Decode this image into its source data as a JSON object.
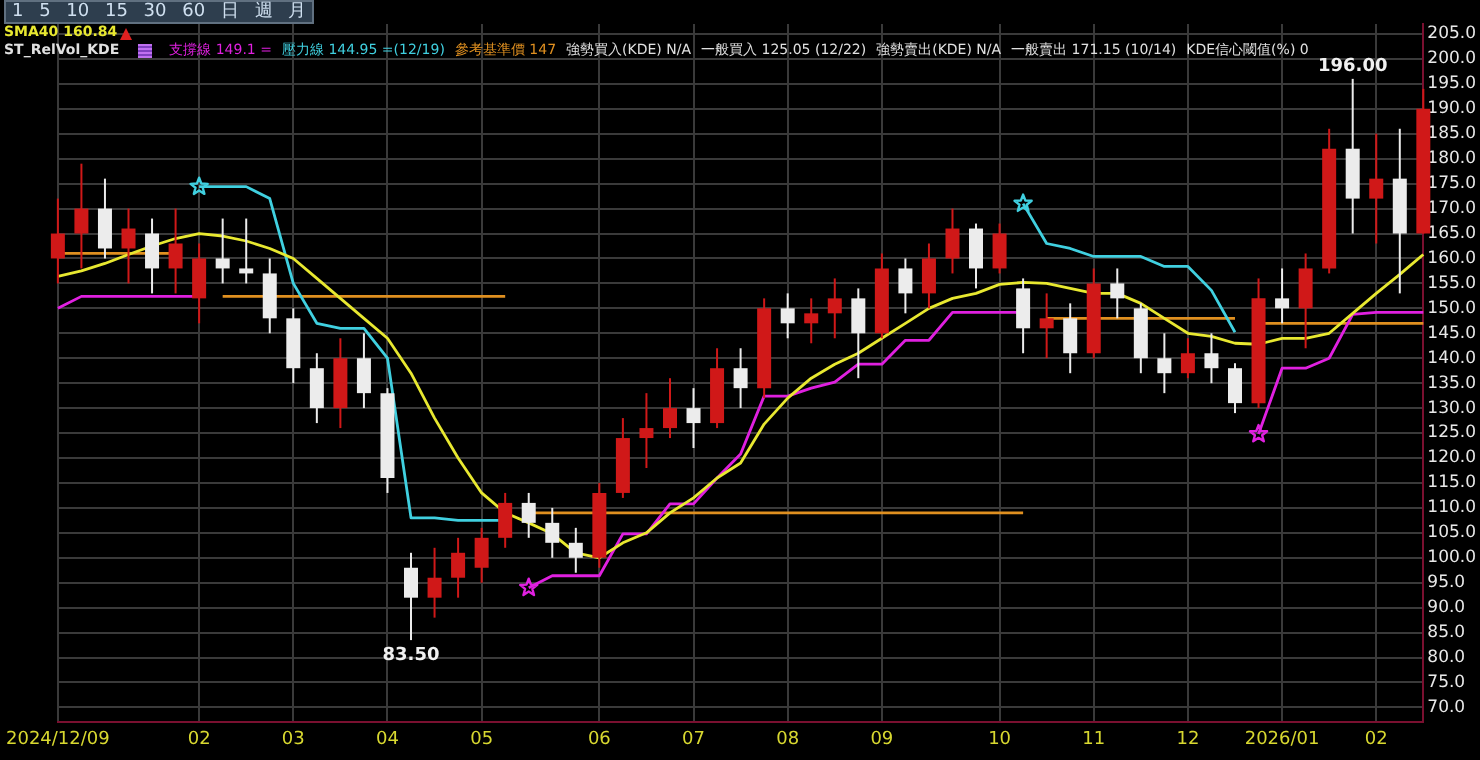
{
  "chart_data": {
    "type": "candlestick",
    "legend": "top left",
    "legend_title": "ST_RelVol_KDE",
    "grid": true,
    "categories": [
      "2024/12/09",
      null,
      null,
      null,
      null,
      null,
      "02",
      null,
      null,
      null,
      "03",
      null,
      null,
      null,
      "04",
      null,
      null,
      null,
      "05",
      null,
      null,
      null,
      null,
      "06",
      null,
      null,
      null,
      "07",
      null,
      null,
      null,
      "08",
      null,
      null,
      null,
      "09",
      null,
      null,
      null,
      null,
      "10",
      null,
      null,
      null,
      "11",
      null,
      null,
      null,
      "12",
      null,
      null,
      null,
      "2026/01",
      null,
      null,
      null,
      "02",
      null,
      null
    ],
    "ohlc": [
      [
        160,
        172,
        155,
        165
      ],
      [
        165,
        179,
        158,
        170
      ],
      [
        170,
        176,
        160,
        162
      ],
      [
        162,
        170,
        155,
        166
      ],
      [
        165,
        168,
        153,
        158
      ],
      [
        158,
        170,
        153,
        163
      ],
      [
        152,
        163,
        147,
        160
      ],
      [
        160,
        168,
        155,
        158
      ],
      [
        158,
        168,
        155,
        157
      ],
      [
        157,
        160,
        145,
        148
      ],
      [
        148,
        150,
        135,
        138
      ],
      [
        138,
        141,
        127,
        130
      ],
      [
        130,
        144,
        126,
        140
      ],
      [
        140,
        145,
        130,
        133
      ],
      [
        133,
        134,
        113,
        116
      ],
      [
        98,
        101,
        83.5,
        92
      ],
      [
        92,
        102,
        88,
        96
      ],
      [
        96,
        104,
        92,
        101
      ],
      [
        98,
        106,
        95,
        104
      ],
      [
        104,
        113,
        102,
        111
      ],
      [
        111,
        113,
        104,
        107
      ],
      [
        107,
        110,
        100,
        103
      ],
      [
        103,
        106,
        97,
        100
      ],
      [
        100,
        115,
        98,
        113
      ],
      [
        113,
        128,
        112,
        124
      ],
      [
        124,
        133,
        118,
        126
      ],
      [
        126,
        136,
        124,
        130
      ],
      [
        130,
        134,
        122,
        127
      ],
      [
        127,
        142,
        126,
        138
      ],
      [
        138,
        142,
        130,
        134
      ],
      [
        134,
        152,
        132,
        150
      ],
      [
        150,
        153,
        144,
        147
      ],
      [
        147,
        152,
        143,
        149
      ],
      [
        149,
        156,
        144,
        152
      ],
      [
        152,
        154,
        136,
        145
      ],
      [
        145,
        161,
        144,
        158
      ],
      [
        158,
        160,
        149,
        153
      ],
      [
        153,
        163,
        150,
        160
      ],
      [
        160,
        170,
        157,
        166
      ],
      [
        166,
        167,
        154,
        158
      ],
      [
        158,
        167,
        157,
        165
      ],
      [
        154,
        156,
        141,
        146
      ],
      [
        146,
        153,
        140,
        148
      ],
      [
        148,
        151,
        137,
        141
      ],
      [
        141,
        158,
        140,
        155
      ],
      [
        155,
        158,
        148,
        152
      ],
      [
        150,
        151,
        137,
        140
      ],
      [
        140,
        145,
        133,
        137
      ],
      [
        137,
        144,
        136,
        141
      ],
      [
        141,
        145,
        135,
        138
      ],
      [
        138,
        139,
        129,
        131
      ],
      [
        131,
        156,
        130,
        152
      ],
      [
        152,
        158,
        147,
        150
      ],
      [
        150,
        161,
        142,
        158
      ],
      [
        158,
        186,
        157,
        182
      ],
      [
        182,
        196,
        165,
        172
      ],
      [
        172,
        185,
        163,
        176
      ],
      [
        176,
        186,
        153,
        165
      ],
      [
        165,
        194,
        165,
        190
      ]
    ],
    "ylim": [
      67,
      207
    ],
    "yticks": [
      {
        "value": 70,
        "label": "70.0"
      },
      {
        "value": 75,
        "label": "75.0"
      },
      {
        "value": 80,
        "label": "80.0"
      },
      {
        "value": 85,
        "label": "85.0"
      },
      {
        "value": 90,
        "label": "90.0"
      },
      {
        "value": 95,
        "label": "95.0"
      },
      {
        "value": 100,
        "label": "100.0"
      },
      {
        "value": 105,
        "label": "105.0"
      },
      {
        "value": 110,
        "label": "110.0"
      },
      {
        "value": 115,
        "label": "115.0"
      },
      {
        "value": 120,
        "label": "120.0"
      },
      {
        "value": 125,
        "label": "125.0"
      },
      {
        "value": 130,
        "label": "130.0"
      },
      {
        "value": 135,
        "label": "135.0"
      },
      {
        "value": 140,
        "label": "140.0"
      },
      {
        "value": 145,
        "label": "145.0"
      },
      {
        "value": 150,
        "label": "150.0"
      },
      {
        "value": 155,
        "label": "155.0"
      },
      {
        "value": 160,
        "label": "160.0"
      },
      {
        "value": 165,
        "label": "165.0"
      },
      {
        "value": 170,
        "label": "170.0"
      },
      {
        "value": 175,
        "label": "175.0"
      },
      {
        "value": 180,
        "label": "180.0"
      },
      {
        "value": 185,
        "label": "185.0"
      },
      {
        "value": 190,
        "label": "190.0"
      },
      {
        "value": 195,
        "label": "195.0"
      },
      {
        "value": 200,
        "label": "200.0"
      },
      {
        "value": 205,
        "label": "205.0"
      }
    ],
    "series": [
      {
        "name": "SMA40 160.84",
        "type": "line",
        "marker": "none",
        "color": "#e8e830",
        "values": [
          156.4,
          157.5,
          159,
          160.8,
          162.5,
          164,
          165,
          164.5,
          163.5,
          162,
          160,
          156,
          152,
          148,
          144,
          137,
          128,
          120,
          113,
          109,
          107,
          104.8,
          101,
          100,
          103,
          105,
          109,
          112,
          116,
          119,
          126.8,
          132,
          136,
          138.8,
          141,
          144,
          147,
          150,
          152,
          153,
          154.8,
          155.2,
          155,
          154,
          153,
          153,
          151,
          148,
          145,
          144.4,
          143,
          142.8,
          144,
          144,
          145,
          149,
          153,
          156.8,
          160.8
        ]
      },
      {
        "name": "支撐線 149.1 =",
        "type": "line",
        "marker": "none",
        "color": "#e020e0",
        "values": [
          150,
          152.4,
          152.4,
          152.4,
          152.4,
          152.4,
          152.4,
          null,
          null,
          null,
          null,
          null,
          null,
          null,
          null,
          null,
          null,
          null,
          null,
          null,
          null,
          null,
          null,
          null,
          null,
          null,
          null,
          null,
          null,
          null,
          null,
          null,
          null,
          null,
          null,
          null,
          null,
          null,
          null,
          null,
          null,
          null,
          null,
          null,
          null,
          null,
          null,
          null,
          null,
          null,
          null,
          null,
          null,
          null,
          null,
          null,
          null,
          null,
          null
        ]
      },
      {
        "type": "line",
        "marker": "none",
        "color": "#e020e0",
        "values": [
          null,
          null,
          null,
          null,
          null,
          null,
          null,
          null,
          null,
          null,
          null,
          null,
          null,
          null,
          null,
          null,
          null,
          null,
          null,
          null,
          94,
          96.4,
          96.4,
          96.4,
          104.8,
          104.8,
          110.8,
          110.8,
          116,
          120.8,
          132.4,
          132.4,
          134,
          135.2,
          138.8,
          138.8,
          143.6,
          143.6,
          149.2,
          149.2,
          149.2,
          149.2,
          null,
          null,
          null,
          null,
          null,
          null,
          null,
          null,
          null,
          null,
          null,
          null,
          null,
          null,
          null,
          null,
          null
        ]
      },
      {
        "type": "line",
        "marker": "none",
        "color": "#e020e0",
        "values": [
          null,
          null,
          null,
          null,
          null,
          null,
          null,
          null,
          null,
          null,
          null,
          null,
          null,
          null,
          null,
          null,
          null,
          null,
          null,
          null,
          null,
          null,
          null,
          null,
          null,
          null,
          null,
          null,
          null,
          null,
          null,
          null,
          null,
          null,
          null,
          null,
          null,
          null,
          null,
          null,
          null,
          null,
          null,
          null,
          null,
          null,
          null,
          null,
          null,
          null,
          null,
          124.8,
          138,
          138,
          140,
          148.8,
          149.2,
          149.2,
          149.2
        ]
      },
      {
        "name": "壓力線 144.95 =(12/19)",
        "type": "line",
        "marker": "none",
        "color": "#40d0e0",
        "values": [
          null,
          null,
          null,
          null,
          null,
          null,
          174.4,
          174.4,
          174.4,
          172,
          155,
          147,
          146,
          146,
          140,
          108,
          108,
          107.5,
          107.5,
          107.5,
          null,
          null,
          null,
          null,
          null,
          null,
          null,
          null,
          null,
          null,
          null,
          null,
          null,
          null,
          null,
          null,
          null,
          null,
          null,
          null,
          null,
          null,
          null,
          null,
          null,
          null,
          null,
          null,
          null,
          null,
          null,
          null,
          null,
          null,
          null,
          null,
          null,
          null,
          null
        ]
      },
      {
        "type": "line",
        "marker": "none",
        "color": "#40d0e0",
        "values": [
          null,
          null,
          null,
          null,
          null,
          null,
          null,
          null,
          null,
          null,
          null,
          null,
          null,
          null,
          null,
          null,
          null,
          null,
          null,
          null,
          null,
          null,
          null,
          null,
          null,
          null,
          null,
          null,
          null,
          null,
          null,
          null,
          null,
          null,
          null,
          null,
          null,
          null,
          null,
          null,
          null,
          171,
          163,
          162,
          160.4,
          160.4,
          160.4,
          158.4,
          158.4,
          153.6,
          145.2,
          null,
          null,
          null,
          null,
          null,
          null,
          null,
          null
        ]
      },
      {
        "type": "line",
        "marker": "none",
        "color": "#e09020",
        "values": [
          161,
          161,
          161,
          161,
          161,
          161,
          null,
          null,
          null,
          null,
          null,
          null,
          null,
          null,
          null,
          null,
          null,
          null,
          null,
          null,
          null,
          null,
          null,
          null,
          null,
          null,
          null,
          null,
          null,
          null,
          null,
          null,
          null,
          null,
          null,
          null,
          null,
          null,
          null,
          null,
          null,
          null,
          null,
          null,
          null,
          null,
          null,
          null,
          null,
          null,
          null,
          null,
          null,
          null,
          null,
          null,
          null,
          null,
          null
        ]
      },
      {
        "type": "line",
        "marker": "none",
        "color": "#e09020",
        "values": [
          null,
          null,
          null,
          null,
          null,
          null,
          null,
          152.4,
          152.4,
          152.4,
          152.4,
          152.4,
          152.4,
          152.4,
          152.4,
          152.4,
          152.4,
          152.4,
          152.4,
          152.4,
          null,
          null,
          null,
          null,
          null,
          null,
          null,
          null,
          null,
          null,
          null,
          null,
          null,
          null,
          null,
          null,
          null,
          null,
          null,
          null,
          null,
          null,
          null,
          null,
          null,
          null,
          null,
          null,
          null,
          null,
          null,
          null,
          null,
          null,
          null,
          null,
          null,
          null,
          null
        ]
      },
      {
        "type": "line",
        "marker": "none",
        "color": "#e09020",
        "values": [
          null,
          null,
          null,
          null,
          null,
          null,
          null,
          null,
          null,
          null,
          null,
          null,
          null,
          null,
          null,
          null,
          null,
          null,
          null,
          null,
          109,
          109,
          109,
          109,
          109,
          109,
          109,
          109,
          109,
          109,
          109,
          109,
          109,
          109,
          109,
          109,
          109,
          109,
          109,
          109,
          109,
          109,
          null,
          null,
          null,
          null,
          null,
          null,
          null,
          null,
          null,
          null,
          null,
          null,
          null,
          null,
          null,
          null,
          null
        ]
      },
      {
        "type": "line",
        "marker": "none",
        "color": "#e09020",
        "values": [
          null,
          null,
          null,
          null,
          null,
          null,
          null,
          null,
          null,
          null,
          null,
          null,
          null,
          null,
          null,
          null,
          null,
          null,
          null,
          null,
          null,
          null,
          null,
          null,
          null,
          null,
          null,
          null,
          null,
          null,
          null,
          null,
          null,
          null,
          null,
          null,
          null,
          null,
          null,
          null,
          null,
          null,
          148,
          148,
          148,
          148,
          148,
          148,
          148,
          148,
          148,
          null,
          null,
          null,
          null,
          null,
          null,
          null,
          null
        ]
      },
      {
        "name": "參考基準價 147",
        "type": "line",
        "marker": "none",
        "color": "#e09020",
        "values": [
          null,
          null,
          null,
          null,
          null,
          null,
          null,
          null,
          null,
          null,
          null,
          null,
          null,
          null,
          null,
          null,
          null,
          null,
          null,
          null,
          null,
          null,
          null,
          null,
          null,
          null,
          null,
          null,
          null,
          null,
          null,
          null,
          null,
          null,
          null,
          null,
          null,
          null,
          null,
          null,
          null,
          null,
          null,
          null,
          null,
          null,
          null,
          null,
          null,
          null,
          null,
          147,
          147,
          147,
          147,
          147,
          147,
          147,
          147
        ]
      },
      {
        "type": "scatter",
        "marker": "star",
        "color": "#40d0e0",
        "values": [
          null,
          null,
          null,
          null,
          null,
          null,
          174.4,
          null,
          null,
          null,
          null,
          null,
          null,
          null,
          null,
          null,
          null,
          null,
          null,
          null,
          null,
          null,
          null,
          null,
          null,
          null,
          null,
          null,
          null,
          null,
          null,
          null,
          null,
          null,
          null,
          null,
          null,
          null,
          null,
          null,
          null,
          171,
          null,
          null,
          null,
          null,
          null,
          null,
          null,
          null,
          null,
          null,
          null,
          null,
          null,
          null,
          null,
          null,
          null
        ]
      },
      {
        "type": "scatter",
        "marker": "star",
        "color": "#e020e0",
        "values": [
          null,
          null,
          null,
          null,
          null,
          null,
          null,
          null,
          null,
          null,
          null,
          null,
          null,
          null,
          null,
          null,
          null,
          null,
          null,
          null,
          94,
          null,
          null,
          null,
          null,
          null,
          null,
          null,
          null,
          null,
          null,
          null,
          null,
          null,
          null,
          null,
          null,
          null,
          null,
          null,
          null,
          null,
          null,
          null,
          null,
          null,
          null,
          null,
          null,
          null,
          null,
          124.8,
          null,
          null,
          null,
          null,
          null,
          null,
          null
        ]
      }
    ],
    "annotations": [
      "1 5 10 15 30 60 日 週 月",
      "強勢買入(KDE) N/A",
      "一般買入 125.05 (12/22)",
      "強勢賣出(KDE) N/A",
      "一般賣出 171.15 (10/14)",
      "KDE信心閾值(%) 0",
      {
        "text": "196.00",
        "y": 196
      },
      {
        "text": "83.50",
        "y": 83.5
      }
    ]
  }
}
